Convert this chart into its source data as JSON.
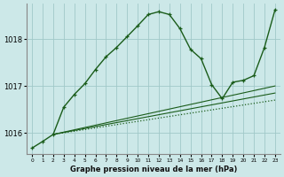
{
  "title": "Graphe pression niveau de la mer (hPa)",
  "bg_color": "#cce8e8",
  "grid_color": "#a0c8c8",
  "line_color": "#1a5c1a",
  "xlim": [
    -0.5,
    23.5
  ],
  "ylim": [
    1015.55,
    1018.75
  ],
  "yticks": [
    1016,
    1017,
    1018
  ],
  "xticks": [
    0,
    1,
    2,
    3,
    4,
    5,
    6,
    7,
    8,
    9,
    10,
    11,
    12,
    13,
    14,
    15,
    16,
    17,
    18,
    19,
    20,
    21,
    22,
    23
  ],
  "series": [
    {
      "x": [
        2,
        23
      ],
      "y": [
        1015.97,
        1016.7
      ],
      "style": "dotted",
      "marker": null,
      "lw": 0.9
    },
    {
      "x": [
        2,
        23
      ],
      "y": [
        1015.97,
        1016.85
      ],
      "style": "solid",
      "marker": null,
      "lw": 0.8
    },
    {
      "x": [
        2,
        23
      ],
      "y": [
        1015.97,
        1017.0
      ],
      "style": "solid",
      "marker": null,
      "lw": 0.8
    },
    {
      "x": [
        0,
        1,
        2,
        3,
        4,
        5,
        6,
        7,
        8,
        9,
        10,
        11,
        12,
        13,
        14,
        15,
        16,
        17,
        18,
        19,
        20,
        21,
        22,
        23
      ],
      "y": [
        1015.68,
        1015.82,
        1015.97,
        1016.55,
        1016.82,
        1017.05,
        1017.35,
        1017.62,
        1017.82,
        1018.05,
        1018.28,
        1018.52,
        1018.58,
        1018.52,
        1018.22,
        1017.78,
        1017.58,
        1017.03,
        1016.73,
        1017.08,
        1017.12,
        1017.22,
        1017.82,
        1018.62
      ],
      "style": "solid",
      "marker": "+",
      "lw": 1.0
    }
  ]
}
